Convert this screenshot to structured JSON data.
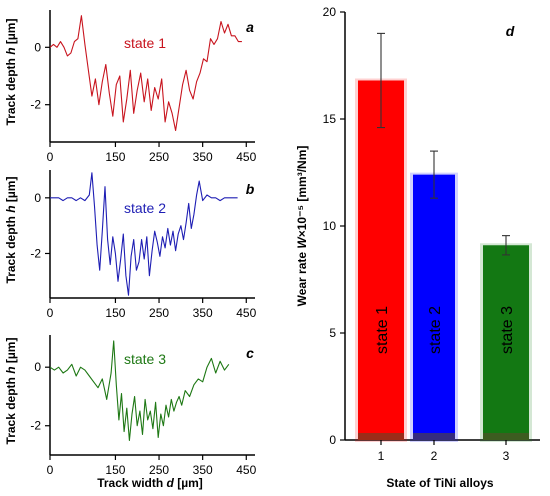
{
  "chart_data": [
    {
      "type": "line",
      "panel_letter": "a",
      "ylabel_text": "Track depth ",
      "ylabel_var": "h",
      "ylabel_unit": " [µm]",
      "x_ticks": [
        "0",
        "150",
        "250",
        "350",
        "450"
      ],
      "x_tick_values": [
        0,
        150,
        250,
        350,
        450
      ],
      "y_ticks": [
        "0",
        "-2"
      ],
      "y_tick_values": [
        0,
        -2
      ],
      "xlim": [
        0,
        470
      ],
      "ylim": [
        -3.3,
        1.3
      ],
      "series": [
        {
          "name": "state 1",
          "color": "#c8141e",
          "highlight_color": "#8b4513",
          "x": [
            0,
            8,
            16,
            24,
            32,
            40,
            48,
            56,
            64,
            72,
            80,
            88,
            96,
            104,
            112,
            120,
            128,
            136,
            144,
            152,
            160,
            168,
            176,
            184,
            192,
            200,
            208,
            216,
            224,
            232,
            240,
            248,
            256,
            264,
            272,
            280,
            288,
            296,
            304,
            312,
            320,
            328,
            336,
            344,
            352,
            360,
            368,
            376,
            384,
            392,
            400,
            408,
            416,
            424,
            432,
            440
          ],
          "y": [
            0.0,
            0.1,
            0.0,
            0.2,
            0.0,
            -0.3,
            -0.2,
            0.2,
            0.3,
            1.1,
            0.1,
            -0.8,
            -1.7,
            -1.1,
            -2.0,
            -1.2,
            -0.6,
            -1.6,
            -2.4,
            -1.3,
            -1.0,
            -2.6,
            -1.8,
            -0.8,
            -2.3,
            -1.5,
            -0.9,
            -1.9,
            -1.1,
            -2.2,
            -1.4,
            -1.8,
            -1.1,
            -2.6,
            -1.9,
            -2.3,
            -2.9,
            -2.1,
            -1.3,
            -0.8,
            -1.5,
            -1.8,
            -1.2,
            -0.9,
            -0.4,
            -0.5,
            0.3,
            0.1,
            0.3,
            0.9,
            0.5,
            0.8,
            0.4,
            0.4,
            0.2,
            0.2
          ]
        }
      ]
    },
    {
      "type": "line",
      "panel_letter": "b",
      "ylabel_text": "Track depth ",
      "ylabel_var": "h",
      "ylabel_unit": " [µm]",
      "x_ticks": [
        "0",
        "150",
        "250",
        "350",
        "450"
      ],
      "x_tick_values": [
        0,
        150,
        250,
        350,
        450
      ],
      "y_ticks": [
        "0",
        "-2"
      ],
      "y_tick_values": [
        0,
        -2
      ],
      "xlim": [
        0,
        470
      ],
      "ylim": [
        -3.6,
        1.0
      ],
      "series": [
        {
          "name": "state 2",
          "color": "#1e1eb4",
          "x": [
            0,
            10,
            20,
            30,
            40,
            50,
            60,
            70,
            80,
            90,
            96,
            102,
            108,
            114,
            120,
            126,
            132,
            138,
            144,
            150,
            156,
            162,
            168,
            174,
            180,
            186,
            192,
            198,
            204,
            210,
            216,
            222,
            228,
            234,
            240,
            246,
            252,
            258,
            264,
            270,
            276,
            282,
            288,
            294,
            300,
            306,
            312,
            318,
            324,
            330,
            336,
            342,
            350,
            360,
            370,
            380,
            390,
            400,
            410,
            420,
            430
          ],
          "y": [
            0.0,
            0.0,
            0.0,
            -0.1,
            0.0,
            0.0,
            -0.1,
            0.0,
            -0.1,
            0.1,
            0.9,
            -0.3,
            -1.7,
            -2.6,
            -1.2,
            0.4,
            -1.5,
            -2.4,
            -1.4,
            -2.0,
            -3.0,
            -2.2,
            -1.3,
            -2.8,
            -3.5,
            -2.1,
            -1.5,
            -2.6,
            -2.3,
            -1.5,
            -2.2,
            -1.4,
            -2.8,
            -1.9,
            -1.2,
            -1.6,
            -2.1,
            -1.4,
            -1.8,
            -1.1,
            -1.7,
            -1.2,
            -1.9,
            -1.3,
            -1.0,
            -1.5,
            -0.9,
            -0.2,
            -1.1,
            -0.6,
            0.1,
            0.6,
            -0.1,
            0.1,
            0.0,
            0.0,
            -0.1,
            0.0,
            0.0,
            0.0,
            0.0
          ]
        }
      ]
    },
    {
      "type": "line",
      "panel_letter": "c",
      "ylabel_text": "Track depth ",
      "ylabel_var": "h",
      "ylabel_unit": " [µm]",
      "xlabel_text": "Track width ",
      "xlabel_var": "d",
      "xlabel_unit": " [µm]",
      "x_ticks": [
        "0",
        "150",
        "250",
        "350",
        "450"
      ],
      "x_tick_values": [
        0,
        150,
        250,
        350,
        450
      ],
      "y_ticks": [
        "0",
        "-2"
      ],
      "y_tick_values": [
        0,
        -2
      ],
      "xlim": [
        0,
        470
      ],
      "ylim": [
        -3.0,
        1.1
      ],
      "series": [
        {
          "name": "state 3",
          "color": "#1e7814",
          "x": [
            0,
            10,
            20,
            30,
            40,
            50,
            60,
            70,
            80,
            90,
            100,
            110,
            120,
            130,
            140,
            146,
            152,
            158,
            164,
            170,
            176,
            182,
            188,
            194,
            200,
            206,
            212,
            218,
            224,
            230,
            236,
            242,
            248,
            254,
            260,
            266,
            272,
            278,
            284,
            290,
            296,
            302,
            310,
            320,
            330,
            340,
            350,
            360,
            370,
            380,
            390,
            400,
            410
          ],
          "y": [
            0.0,
            -0.1,
            0.0,
            -0.2,
            -0.1,
            0.1,
            -0.3,
            0.0,
            -0.1,
            -0.3,
            -0.5,
            -0.7,
            -0.4,
            -1.1,
            -0.2,
            0.9,
            -0.6,
            -1.8,
            -0.9,
            -2.2,
            -1.4,
            -2.5,
            -1.6,
            -1.0,
            -2.0,
            -1.5,
            -2.3,
            -1.1,
            -1.8,
            -1.5,
            -2.1,
            -1.2,
            -2.4,
            -1.6,
            -2.0,
            -1.3,
            -1.7,
            -1.1,
            -1.5,
            -1.2,
            -1.0,
            -1.3,
            -0.8,
            -1.0,
            -0.6,
            -0.4,
            -0.5,
            0.0,
            0.3,
            -0.2,
            0.2,
            -0.1,
            0.1
          ]
        }
      ]
    },
    {
      "type": "bar",
      "panel_letter": "d",
      "categories": [
        "1",
        "2",
        "3"
      ],
      "xlabel": "State of TiNi alloys",
      "ylabel_text": "Wear rate ",
      "ylabel_var": "W",
      "ylabel_unit": "×10⁻⁵ [mm³/Nm]",
      "y_ticks": [
        "0",
        "5",
        "10",
        "15",
        "20"
      ],
      "y_tick_values": [
        0,
        5,
        10,
        15,
        20
      ],
      "ylim": [
        0,
        20
      ],
      "values": [
        16.8,
        12.4,
        9.1
      ],
      "errors": [
        2.2,
        1.1,
        0.45
      ],
      "bar_labels": [
        "state 1",
        "state 2",
        "state 3"
      ],
      "colors": [
        "#ff0000",
        "#0000ff",
        "#137813"
      ]
    }
  ]
}
